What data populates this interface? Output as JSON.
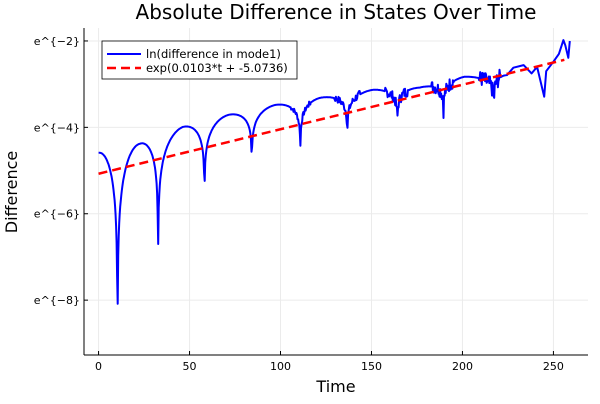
{
  "chart_data": {
    "type": "line",
    "title": "Absolute Difference in States Over Time",
    "xlabel": "Time",
    "ylabel": "Difference",
    "xlim": [
      -8,
      269
    ],
    "ylim": [
      -9.27,
      -1.7
    ],
    "xticks": [
      0,
      50,
      100,
      150,
      200,
      250
    ],
    "xtick_labels": [
      "0",
      "50",
      "100",
      "150",
      "200",
      "250"
    ],
    "yticks": [
      -2,
      -4,
      -6,
      -8
    ],
    "ytick_labels": [
      "e^{−2}",
      "e^{−4}",
      "e^{−6}",
      "e^{−8}"
    ],
    "grid": true,
    "legend_position": "top-left",
    "series": [
      {
        "name": "ln(difference in mode1)",
        "color": "#0000ff",
        "style": "solid",
        "peaks": [
          [
            0,
            -4.59
          ],
          [
            22.7,
            -4.38
          ],
          [
            46.4,
            -3.99
          ],
          [
            71.5,
            -3.71
          ],
          [
            97.3,
            -3.48
          ],
          [
            122.7,
            -3.31
          ],
          [
            150.9,
            -3.13
          ],
          [
            176.4,
            -3.08
          ],
          [
            200.9,
            -2.83
          ],
          [
            224.5,
            -2.79
          ]
        ],
        "dips": [
          [
            10.4,
            -9.03
          ],
          [
            32.7,
            -7.08
          ],
          [
            58.2,
            -5.66
          ],
          [
            84.2,
            -4.87
          ],
          [
            110.9,
            -4.55
          ],
          [
            136.7,
            -4.17
          ],
          [
            164.2,
            -3.9
          ],
          [
            189.6,
            -3.63
          ],
          [
            217.3,
            -3.52
          ]
        ],
        "tail": [
          [
            224.5,
            -2.79
          ],
          [
            228,
            -2.62
          ],
          [
            233.6,
            -2.56
          ],
          [
            238,
            -2.75
          ],
          [
            241,
            -2.6
          ],
          [
            244.9,
            -3.29
          ],
          [
            246,
            -2.7
          ],
          [
            250,
            -2.48
          ],
          [
            253,
            -2.3
          ],
          [
            255.5,
            -1.98
          ],
          [
            256.5,
            -2.1
          ],
          [
            258.2,
            -2.39
          ],
          [
            259,
            -2.0
          ]
        ]
      },
      {
        "name": "exp(0.0103*t + -5.0736)",
        "color": "#ff0000",
        "style": "dashed",
        "slope": 0.0103,
        "intercept": -5.0736,
        "x_range": [
          0,
          256
        ]
      }
    ]
  }
}
